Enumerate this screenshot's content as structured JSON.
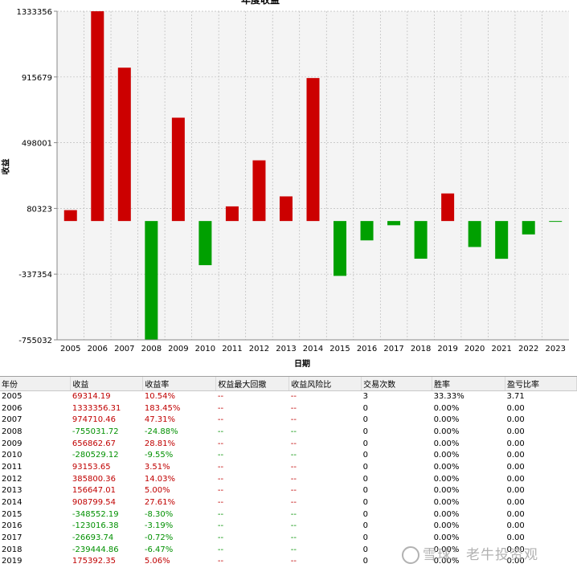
{
  "chart_data": {
    "type": "bar",
    "title": "年度收益",
    "xlabel": "日期",
    "ylabel": "收益",
    "ylim": [
      -755032,
      1333356
    ],
    "yticks": [
      "1333356",
      "915679",
      "498001",
      "80323",
      "-337354",
      "-755032"
    ],
    "ytick_values": [
      1333356,
      915679,
      498001,
      80323,
      -337354,
      -755032
    ],
    "grid": true,
    "colors": {
      "positive": "#cc0000",
      "negative": "#00a000",
      "plot_bg": "#f4f4f4",
      "grid": "#bbbbbb"
    },
    "categories": [
      "2005",
      "2006",
      "2007",
      "2008",
      "2009",
      "2010",
      "2011",
      "2012",
      "2013",
      "2014",
      "2015",
      "2016",
      "2017",
      "2018",
      "2019",
      "2020",
      "2021",
      "2022",
      "2023"
    ],
    "values": [
      69314.19,
      1333356.31,
      974710.46,
      -755031.72,
      656862.67,
      -280529.12,
      93153.65,
      385800.36,
      156647.01,
      908799.54,
      -348552.19,
      -123016.38,
      -26693.74,
      -239444.86,
      175392.35,
      -165000,
      -240000,
      -85000,
      -3000
    ]
  },
  "table": {
    "headers": [
      "年份",
      "收益",
      "收益率",
      "权益最大回撤",
      "收益风险比",
      "交易次数",
      "胜率",
      "盈亏比率"
    ],
    "rows": [
      [
        "2005",
        "69314.19",
        "10.54%",
        "--",
        "--",
        "3",
        "33.33%",
        "3.71"
      ],
      [
        "2006",
        "1333356.31",
        "183.45%",
        "--",
        "--",
        "0",
        "0.00%",
        "0.00"
      ],
      [
        "2007",
        "974710.46",
        "47.31%",
        "--",
        "--",
        "0",
        "0.00%",
        "0.00"
      ],
      [
        "2008",
        "-755031.72",
        "-24.88%",
        "--",
        "--",
        "0",
        "0.00%",
        "0.00"
      ],
      [
        "2009",
        "656862.67",
        "28.81%",
        "--",
        "--",
        "0",
        "0.00%",
        "0.00"
      ],
      [
        "2010",
        "-280529.12",
        "-9.55%",
        "--",
        "--",
        "0",
        "0.00%",
        "0.00"
      ],
      [
        "2011",
        "93153.65",
        "3.51%",
        "--",
        "--",
        "0",
        "0.00%",
        "0.00"
      ],
      [
        "2012",
        "385800.36",
        "14.03%",
        "--",
        "--",
        "0",
        "0.00%",
        "0.00"
      ],
      [
        "2013",
        "156647.01",
        "5.00%",
        "--",
        "--",
        "0",
        "0.00%",
        "0.00"
      ],
      [
        "2014",
        "908799.54",
        "27.61%",
        "--",
        "--",
        "0",
        "0.00%",
        "0.00"
      ],
      [
        "2015",
        "-348552.19",
        "-8.30%",
        "--",
        "--",
        "0",
        "0.00%",
        "0.00"
      ],
      [
        "2016",
        "-123016.38",
        "-3.19%",
        "--",
        "--",
        "0",
        "0.00%",
        "0.00"
      ],
      [
        "2017",
        "-26693.74",
        "-0.72%",
        "--",
        "--",
        "0",
        "0.00%",
        "0.00"
      ],
      [
        "2018",
        "-239444.86",
        "-6.47%",
        "--",
        "--",
        "0",
        "0.00%",
        "0.00"
      ],
      [
        "2019",
        "175392.35",
        "5.06%",
        "--",
        "--",
        "0",
        "0.00%",
        "0.00"
      ]
    ]
  },
  "watermark": "雪球：老牛投资观"
}
